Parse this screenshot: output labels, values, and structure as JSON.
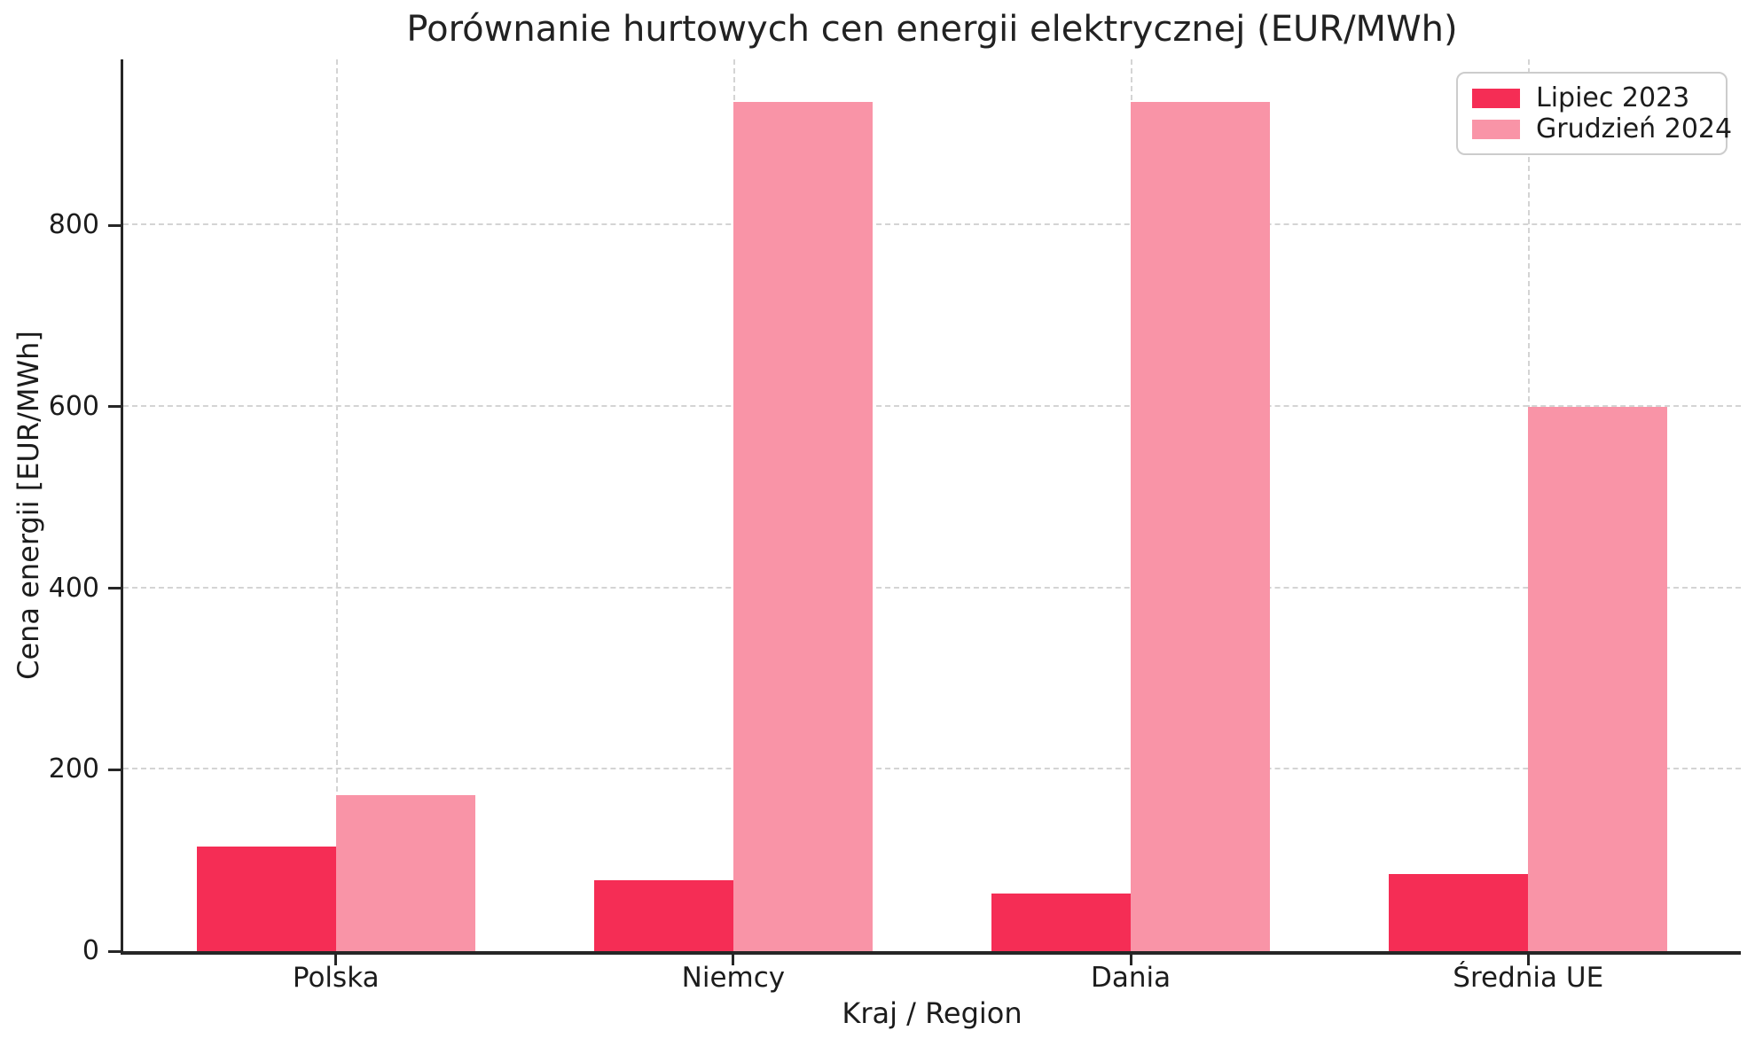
{
  "chart_data": {
    "type": "bar",
    "title": "Porównanie hurtowych cen energii elektrycznej (EUR/MWh)",
    "xlabel": "Kraj / Region",
    "ylabel": "Cena energii [EUR/MWh]",
    "categories": [
      "Polska",
      "Niemcy",
      "Dania",
      "Średnia UE"
    ],
    "series": [
      {
        "name": "Lipiec 2023",
        "color": "#F52D55",
        "values": [
          115,
          78,
          64,
          85
        ]
      },
      {
        "name": "Grudzień 2024",
        "color": "#F994A7",
        "values": [
          172,
          936,
          936,
          600
        ]
      }
    ],
    "yticks": [
      0,
      200,
      400,
      600,
      800
    ],
    "ylim": [
      0,
      983
    ],
    "bar_width_fraction": 0.35,
    "grid": true,
    "grid_style": "dashed",
    "legend_position": "top-right"
  }
}
